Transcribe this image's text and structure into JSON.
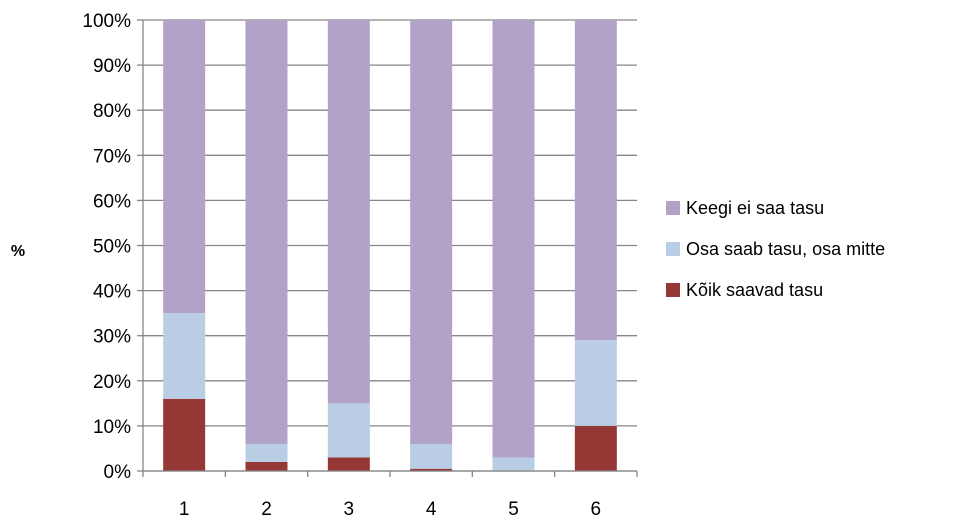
{
  "chart_data": {
    "type": "bar",
    "stacked": true,
    "percent_stacked": true,
    "title": "",
    "xlabel": "",
    "ylabel": "%",
    "categories": [
      "1",
      "2",
      "3",
      "4",
      "5",
      "6"
    ],
    "ylim": [
      0,
      100
    ],
    "y_ticks": [
      "0%",
      "10%",
      "20%",
      "30%",
      "40%",
      "50%",
      "60%",
      "70%",
      "80%",
      "90%",
      "100%"
    ],
    "grid": true,
    "legend_position": "right",
    "series": [
      {
        "name": "Kõik saavad tasu",
        "color": "#953735",
        "values": [
          16,
          2,
          3,
          0.5,
          0,
          10
        ]
      },
      {
        "name": "Osa saab tasu, osa mitte",
        "color": "#B9CDE5",
        "values": [
          19,
          4,
          12,
          5.5,
          3,
          19
        ]
      },
      {
        "name": "Keegi ei saa tasu",
        "color": "#B3A2C7",
        "values": [
          65,
          94,
          85,
          94,
          97,
          71
        ]
      }
    ],
    "legend_order": [
      "Keegi ei saa tasu",
      "Osa saab tasu, osa mitte",
      "Kõik saavad tasu"
    ]
  }
}
